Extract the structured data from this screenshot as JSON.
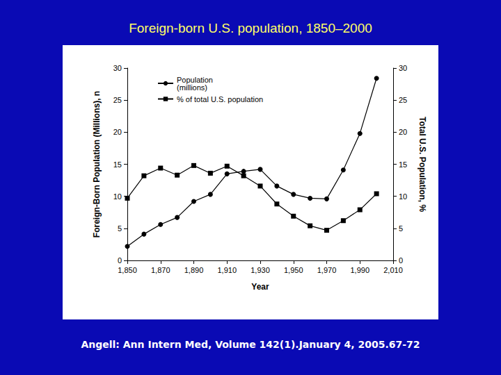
{
  "chart_data": {
    "type": "line",
    "title": "Foreign-born U.S. population, 1850–2000",
    "annotations": [
      "Angell: Ann Intern Med, Volume 142(1).January 4, 2005.67-72"
    ],
    "x_label": "Year",
    "y_label": "Foreign-Born Population (Millions), n",
    "y2_label": "Total U.S. Population, %",
    "x": [
      1850,
      1860,
      1870,
      1880,
      1890,
      1900,
      1910,
      1920,
      1930,
      1940,
      1950,
      1960,
      1970,
      1980,
      1990,
      2000
    ],
    "series": [
      {
        "name": "Population\n(millions)",
        "color": "#000000",
        "marker": "circle",
        "axis": "y",
        "values": [
          2.2,
          4.1,
          5.6,
          6.7,
          9.2,
          10.3,
          13.5,
          13.9,
          14.2,
          11.6,
          10.3,
          9.7,
          9.6,
          14.1,
          19.8,
          28.4
        ]
      },
      {
        "name": "% of total U.S. population",
        "color": "#000000",
        "marker": "square",
        "axis": "y2",
        "values": [
          9.7,
          13.2,
          14.4,
          13.3,
          14.8,
          13.6,
          14.7,
          13.2,
          11.6,
          8.8,
          6.9,
          5.4,
          4.7,
          6.2,
          7.9,
          10.4
        ]
      }
    ],
    "xlim": [
      1850,
      2010
    ],
    "xticks": [
      1850,
      1870,
      1890,
      1910,
      1930,
      1950,
      1970,
      1990,
      2010
    ],
    "ylim": [
      0,
      30
    ],
    "yticks": [
      0,
      5,
      10,
      15,
      20,
      25,
      30
    ],
    "y2lim": [
      0,
      30
    ],
    "y2ticks": [
      0,
      5,
      10,
      15,
      20,
      25,
      30
    ],
    "grid": false,
    "legend": "upper left"
  }
}
